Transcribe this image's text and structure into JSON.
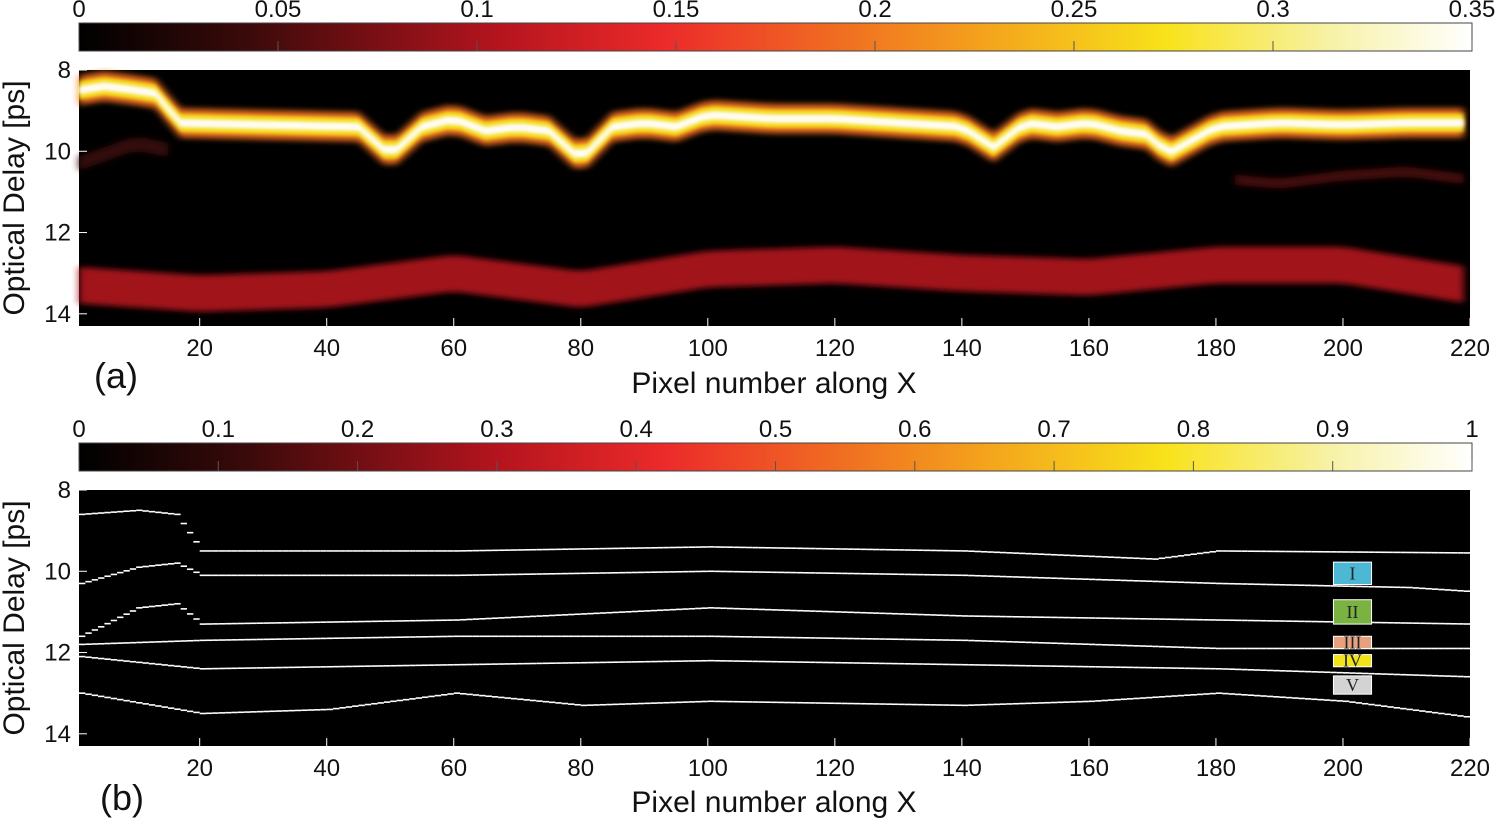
{
  "chart_data": [
    {
      "type": "heatmap",
      "panel_label": "(a)",
      "xlabel": "Pixel number along X",
      "ylabel": "Optical Delay [ps]",
      "xlim": [
        1,
        220
      ],
      "ylim": [
        8,
        14.3
      ],
      "y_inverted": true,
      "x_ticks": [
        "20",
        "40",
        "60",
        "80",
        "100",
        "120",
        "140",
        "160",
        "180",
        "200",
        "220"
      ],
      "y_ticks": [
        "8",
        "10",
        "12",
        "14"
      ],
      "colorbar": {
        "colormap": "hot",
        "range": [
          0,
          0.35
        ],
        "ticks": [
          "0",
          "0.05",
          "0.1",
          "0.15",
          "0.2",
          "0.25",
          "0.3",
          "0.35"
        ]
      },
      "features": [
        {
          "name": "main reflection band",
          "peak_intensity": 0.35,
          "x": [
            1,
            5,
            10,
            14,
            16,
            30,
            45,
            50,
            55,
            60,
            65,
            70,
            75,
            80,
            85,
            90,
            95,
            100,
            110,
            120,
            130,
            140,
            145,
            150,
            155,
            160,
            165,
            170,
            172,
            180,
            190,
            200,
            210,
            220
          ],
          "y": [
            8.5,
            8.4,
            8.5,
            8.6,
            9.3,
            9.35,
            9.4,
            10.1,
            9.4,
            9.2,
            9.5,
            9.4,
            9.5,
            10.2,
            9.4,
            9.3,
            9.4,
            9.1,
            9.2,
            9.2,
            9.3,
            9.4,
            9.9,
            9.3,
            9.4,
            9.3,
            9.5,
            9.6,
            10.1,
            9.4,
            9.3,
            9.35,
            9.3,
            9.3
          ]
        },
        {
          "name": "secondary band",
          "peak_intensity": 0.04,
          "x": [
            1,
            10,
            16
          ],
          "y": [
            10.3,
            9.8,
            10.0
          ]
        },
        {
          "name": "weak right-side echo",
          "peak_intensity": 0.05,
          "x": [
            183,
            190,
            200,
            210,
            220
          ],
          "y": [
            10.7,
            10.8,
            10.6,
            10.5,
            10.7
          ]
        },
        {
          "name": "deep band",
          "peak_intensity": 0.1,
          "x": [
            1,
            20,
            40,
            60,
            80,
            100,
            120,
            140,
            160,
            180,
            200,
            220
          ],
          "y": [
            13.3,
            13.5,
            13.4,
            13.0,
            13.4,
            12.9,
            12.8,
            13.0,
            13.1,
            12.8,
            12.8,
            13.3
          ]
        }
      ]
    },
    {
      "type": "heatmap",
      "panel_label": "(b)",
      "xlabel": "Pixel number along X",
      "ylabel": "Optical Delay [ps]",
      "xlim": [
        1,
        220
      ],
      "ylim": [
        8,
        14.3
      ],
      "y_inverted": true,
      "x_ticks": [
        "20",
        "40",
        "60",
        "80",
        "100",
        "120",
        "140",
        "160",
        "180",
        "200",
        "220"
      ],
      "y_ticks": [
        "8",
        "10",
        "12",
        "14"
      ],
      "colorbar": {
        "colormap": "hot",
        "range": [
          0,
          1
        ],
        "ticks": [
          "0",
          "0.1",
          "0.2",
          "0.3",
          "0.4",
          "0.5",
          "0.6",
          "0.7",
          "0.8",
          "0.9",
          "1"
        ]
      },
      "layers": [
        {
          "label": "I",
          "color": "#4cb8d3",
          "y_center": 10.05
        },
        {
          "label": "II",
          "color": "#7bb342",
          "y_center": 11.0
        },
        {
          "label": "III",
          "color": "#e8a17e",
          "y_center": 11.75
        },
        {
          "label": "IV",
          "color": "#f2e21a",
          "y_center": 12.2
        },
        {
          "label": "V",
          "color": "#d3d3d3",
          "y_center": 12.8
        }
      ],
      "boundary_lines": [
        {
          "x": [
            1,
            10,
            16,
            20,
            60,
            100,
            140,
            170,
            180,
            220
          ],
          "y": [
            8.6,
            8.5,
            8.6,
            9.5,
            9.5,
            9.4,
            9.5,
            9.7,
            9.5,
            9.55
          ]
        },
        {
          "x": [
            1,
            10,
            16,
            20,
            60,
            100,
            140,
            180,
            210,
            220
          ],
          "y": [
            10.3,
            9.9,
            9.8,
            10.1,
            10.1,
            10.0,
            10.1,
            10.3,
            10.4,
            10.5
          ]
        },
        {
          "x": [
            1,
            10,
            16,
            20,
            60,
            100,
            140,
            180,
            220
          ],
          "y": [
            11.6,
            10.9,
            10.8,
            11.3,
            11.2,
            10.9,
            11.1,
            11.2,
            11.3
          ]
        },
        {
          "x": [
            1,
            20,
            60,
            100,
            140,
            180,
            220
          ],
          "y": [
            11.8,
            11.7,
            11.6,
            11.6,
            11.7,
            11.9,
            11.9
          ]
        },
        {
          "x": [
            1,
            20,
            60,
            100,
            140,
            180,
            220
          ],
          "y": [
            12.1,
            12.4,
            12.3,
            12.2,
            12.3,
            12.4,
            12.6
          ]
        },
        {
          "x": [
            1,
            20,
            40,
            60,
            80,
            100,
            140,
            160,
            180,
            200,
            220
          ],
          "y": [
            13.0,
            13.5,
            13.4,
            13.0,
            13.3,
            13.2,
            13.3,
            13.2,
            13.0,
            13.2,
            13.6
          ]
        }
      ]
    }
  ]
}
